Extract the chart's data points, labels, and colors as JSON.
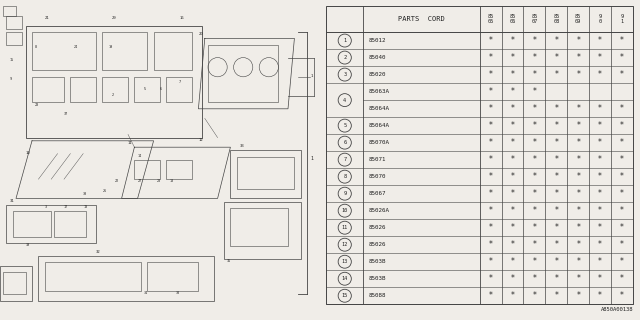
{
  "bg_color": "#f0ede8",
  "table_bg": "#f0ede8",
  "header": "PARTS CORD",
  "col_headers": [
    "85\n05",
    "85\n06",
    "85\n07",
    "85\n08",
    "85\n09",
    "90",
    "91"
  ],
  "rows": [
    {
      "num": "1",
      "code": "85012",
      "stars": [
        1,
        1,
        1,
        1,
        1,
        1,
        1
      ],
      "shared": false
    },
    {
      "num": "2",
      "code": "85040",
      "stars": [
        1,
        1,
        1,
        1,
        1,
        1,
        1
      ],
      "shared": false
    },
    {
      "num": "3",
      "code": "85020",
      "stars": [
        1,
        1,
        1,
        1,
        1,
        1,
        1
      ],
      "shared": false
    },
    {
      "num": "4",
      "code": "85063A",
      "stars": [
        1,
        1,
        1,
        0,
        0,
        0,
        0
      ],
      "shared": true,
      "first": true
    },
    {
      "num": "4",
      "code": "85064A",
      "stars": [
        1,
        1,
        1,
        1,
        1,
        1,
        1
      ],
      "shared": true,
      "first": false
    },
    {
      "num": "5",
      "code": "85064A",
      "stars": [
        1,
        1,
        1,
        1,
        1,
        1,
        1
      ],
      "shared": false
    },
    {
      "num": "6",
      "code": "85070A",
      "stars": [
        1,
        1,
        1,
        1,
        1,
        1,
        1
      ],
      "shared": false
    },
    {
      "num": "7",
      "code": "85071",
      "stars": [
        1,
        1,
        1,
        1,
        1,
        1,
        1
      ],
      "shared": false
    },
    {
      "num": "8",
      "code": "85070",
      "stars": [
        1,
        1,
        1,
        1,
        1,
        1,
        1
      ],
      "shared": false
    },
    {
      "num": "9",
      "code": "85067",
      "stars": [
        1,
        1,
        1,
        1,
        1,
        1,
        1
      ],
      "shared": false
    },
    {
      "num": "10",
      "code": "85026A",
      "stars": [
        1,
        1,
        1,
        1,
        1,
        1,
        1
      ],
      "shared": false
    },
    {
      "num": "11",
      "code": "85026",
      "stars": [
        1,
        1,
        1,
        1,
        1,
        1,
        1
      ],
      "shared": false
    },
    {
      "num": "12",
      "code": "85026",
      "stars": [
        1,
        1,
        1,
        1,
        1,
        1,
        1
      ],
      "shared": false
    },
    {
      "num": "13",
      "code": "8503B",
      "stars": [
        1,
        1,
        1,
        1,
        1,
        1,
        1
      ],
      "shared": false
    },
    {
      "num": "14",
      "code": "8503B",
      "stars": [
        1,
        1,
        1,
        1,
        1,
        1,
        1
      ],
      "shared": false
    },
    {
      "num": "15",
      "code": "85088",
      "stars": [
        1,
        1,
        1,
        1,
        1,
        1,
        1
      ],
      "shared": false
    }
  ],
  "footnote": "A850A00138",
  "text_color": "#222222",
  "line_color": "#444444",
  "star_color": "#222222"
}
